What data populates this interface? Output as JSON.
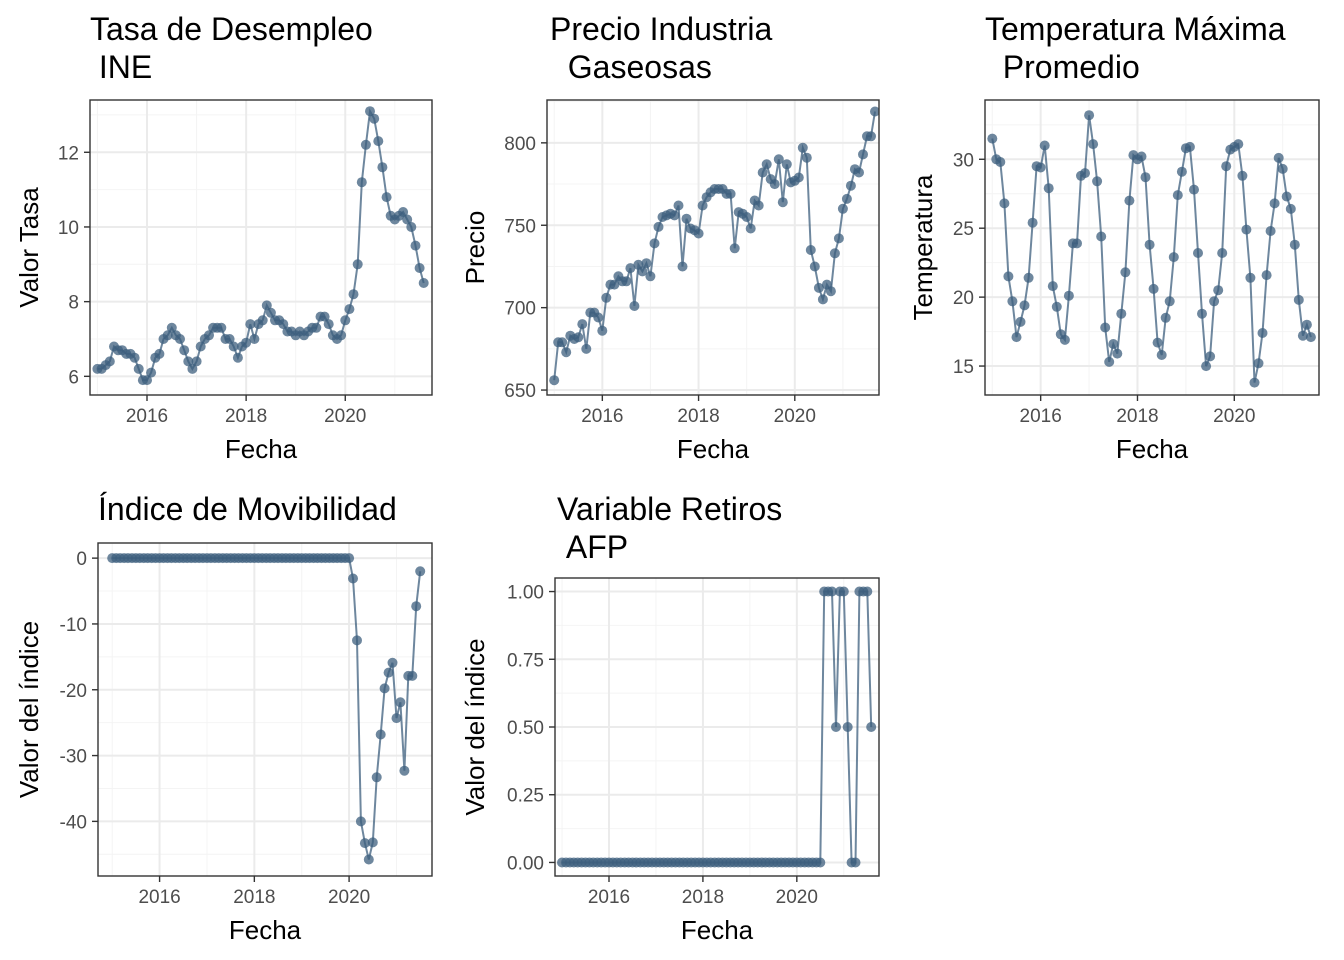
{
  "colors": {
    "series": "#3d5f7e"
  },
  "chart_data": [
    {
      "type": "line",
      "title_lines": [
        "Tasa de Desempleo",
        " INE"
      ],
      "xlabel": "Fecha",
      "ylabel": "Valor Tasa",
      "xlim": [
        2014.85,
        2021.75
      ],
      "ylim": [
        5.5,
        13.4
      ],
      "x_ticks": [
        2016,
        2018,
        2020
      ],
      "x_tick_labels": [
        "2016",
        "2018",
        "2020"
      ],
      "y_ticks": [
        6,
        8,
        10,
        12
      ],
      "y_tick_labels": [
        "6",
        "8",
        "10",
        "12"
      ],
      "x_start": 2015.0,
      "x_step": 0.0833333,
      "values": [
        6.2,
        6.2,
        6.3,
        6.4,
        6.8,
        6.7,
        6.7,
        6.6,
        6.6,
        6.5,
        6.2,
        5.9,
        5.9,
        6.1,
        6.5,
        6.6,
        7.0,
        7.1,
        7.3,
        7.1,
        7.0,
        6.7,
        6.4,
        6.2,
        6.4,
        6.8,
        7.0,
        7.1,
        7.3,
        7.3,
        7.3,
        7.0,
        7.0,
        6.8,
        6.5,
        6.8,
        6.9,
        7.4,
        7.0,
        7.4,
        7.5,
        7.9,
        7.7,
        7.5,
        7.5,
        7.4,
        7.2,
        7.2,
        7.1,
        7.2,
        7.1,
        7.2,
        7.3,
        7.3,
        7.6,
        7.6,
        7.4,
        7.1,
        7.0,
        7.1,
        7.5,
        7.8,
        8.2,
        9.0,
        11.2,
        12.2,
        13.1,
        12.9,
        12.3,
        11.6,
        10.8,
        10.3,
        10.2,
        10.3,
        10.4,
        10.2,
        10.0,
        9.5,
        8.9,
        8.5
      ]
    },
    {
      "type": "line",
      "title_lines": [
        "Precio Industria",
        "  Gaseosas"
      ],
      "xlabel": "Fecha",
      "ylabel": "Precio",
      "xlim": [
        2014.85,
        2021.75
      ],
      "ylim": [
        647,
        826
      ],
      "x_ticks": [
        2016,
        2018,
        2020
      ],
      "x_tick_labels": [
        "2016",
        "2018",
        "2020"
      ],
      "y_ticks": [
        650,
        700,
        750,
        800
      ],
      "y_tick_labels": [
        "650",
        "700",
        "750",
        "800"
      ],
      "x_start": 2015.0,
      "x_step": 0.0833333,
      "values": [
        656,
        679,
        679,
        673,
        683,
        681,
        682,
        690,
        675,
        697,
        697,
        694,
        686,
        706,
        714,
        714,
        719,
        716,
        716,
        724,
        701,
        726,
        722,
        727,
        719,
        739,
        749,
        755,
        756,
        757,
        756,
        762,
        725,
        754,
        748,
        747,
        745,
        762,
        767,
        770,
        772,
        772,
        772,
        769,
        769,
        736,
        758,
        757,
        755,
        748,
        765,
        762,
        782,
        787,
        778,
        775,
        790,
        764,
        787,
        776,
        777,
        779,
        797,
        791,
        735,
        725,
        712,
        705,
        714,
        710,
        733,
        742,
        760,
        766,
        774,
        784,
        782,
        793,
        804,
        804,
        819
      ]
    },
    {
      "type": "line",
      "title_lines": [
        "Temperatura Máxima",
        "  Promedio"
      ],
      "xlabel": "Fecha",
      "ylabel": "Temperatura",
      "xlim": [
        2014.85,
        2021.75
      ],
      "ylim": [
        12.9,
        34.3
      ],
      "x_ticks": [
        2016,
        2018,
        2020
      ],
      "x_tick_labels": [
        "2016",
        "2018",
        "2020"
      ],
      "y_ticks": [
        15,
        20,
        25,
        30
      ],
      "y_tick_labels": [
        "15",
        "20",
        "25",
        "30"
      ],
      "x_start": 2015.0,
      "x_step": 0.0833333,
      "values": [
        31.5,
        30.0,
        29.8,
        26.8,
        21.5,
        19.7,
        17.1,
        18.2,
        19.4,
        21.4,
        25.4,
        29.5,
        29.4,
        31.0,
        27.9,
        20.8,
        19.3,
        17.3,
        16.9,
        20.1,
        23.9,
        23.9,
        28.8,
        29.0,
        33.2,
        31.1,
        28.4,
        24.4,
        17.8,
        15.3,
        16.6,
        15.9,
        18.8,
        21.8,
        27.0,
        30.3,
        30.0,
        30.2,
        28.7,
        23.8,
        20.6,
        16.7,
        15.8,
        18.5,
        19.7,
        22.9,
        27.4,
        29.1,
        30.8,
        30.9,
        27.8,
        23.2,
        18.8,
        15.0,
        15.7,
        19.7,
        20.5,
        23.2,
        29.5,
        30.7,
        30.9,
        31.1,
        28.8,
        24.9,
        21.4,
        13.8,
        15.2,
        17.4,
        21.6,
        24.8,
        26.8,
        30.1,
        29.3,
        27.3,
        26.4,
        23.8,
        19.8,
        17.2,
        18.0,
        17.1
      ]
    },
    {
      "type": "line",
      "title_lines": [
        "Índice de Movibilidad"
      ],
      "xlabel": "Fecha",
      "ylabel": "Valor del índice",
      "xlim": [
        2014.7,
        2021.75
      ],
      "ylim": [
        -48.3,
        2.3
      ],
      "x_ticks": [
        2016,
        2018,
        2020
      ],
      "x_tick_labels": [
        "2016",
        "2018",
        "2020"
      ],
      "y_ticks": [
        -40,
        -30,
        -20,
        -10,
        0
      ],
      "y_tick_labels": [
        "-40",
        "-30",
        "-20",
        "-10",
        "0"
      ],
      "x_start": 2015.0,
      "x_step": 0.0833333,
      "values": [
        0,
        0,
        0,
        0,
        0,
        0,
        0,
        0,
        0,
        0,
        0,
        0,
        0,
        0,
        0,
        0,
        0,
        0,
        0,
        0,
        0,
        0,
        0,
        0,
        0,
        0,
        0,
        0,
        0,
        0,
        0,
        0,
        0,
        0,
        0,
        0,
        0,
        0,
        0,
        0,
        0,
        0,
        0,
        0,
        0,
        0,
        0,
        0,
        0,
        0,
        0,
        0,
        0,
        0,
        0,
        0,
        0,
        0,
        0,
        0,
        0,
        -3.1,
        -12.5,
        -40.0,
        -43.3,
        -45.8,
        -43.2,
        -33.3,
        -26.8,
        -19.8,
        -17.4,
        -15.9,
        -24.3,
        -21.9,
        -32.3,
        -17.9,
        -17.9,
        -7.3,
        -2.0
      ]
    },
    {
      "type": "line",
      "title_lines": [
        "Variable Retiros",
        " AFP"
      ],
      "xlabel": "Fecha",
      "ylabel": "Valor del índice",
      "xlim": [
        2014.85,
        2021.75
      ],
      "ylim": [
        -0.05,
        1.05
      ],
      "x_ticks": [
        2016,
        2018,
        2020
      ],
      "x_tick_labels": [
        "2016",
        "2018",
        "2020"
      ],
      "y_ticks": [
        0.0,
        0.25,
        0.5,
        0.75,
        1.0
      ],
      "y_tick_labels": [
        "0.00",
        "0.25",
        "0.50",
        "0.75",
        "1.00"
      ],
      "x_start": 2015.0,
      "x_step": 0.0833333,
      "values": [
        0,
        0,
        0,
        0,
        0,
        0,
        0,
        0,
        0,
        0,
        0,
        0,
        0,
        0,
        0,
        0,
        0,
        0,
        0,
        0,
        0,
        0,
        0,
        0,
        0,
        0,
        0,
        0,
        0,
        0,
        0,
        0,
        0,
        0,
        0,
        0,
        0,
        0,
        0,
        0,
        0,
        0,
        0,
        0,
        0,
        0,
        0,
        0,
        0,
        0,
        0,
        0,
        0,
        0,
        0,
        0,
        0,
        0,
        0,
        0,
        0,
        0,
        0,
        0,
        0,
        0,
        0,
        1,
        1,
        1,
        0.5,
        1,
        1,
        0.5,
        0,
        0,
        1,
        1,
        1,
        0.5
      ]
    }
  ]
}
